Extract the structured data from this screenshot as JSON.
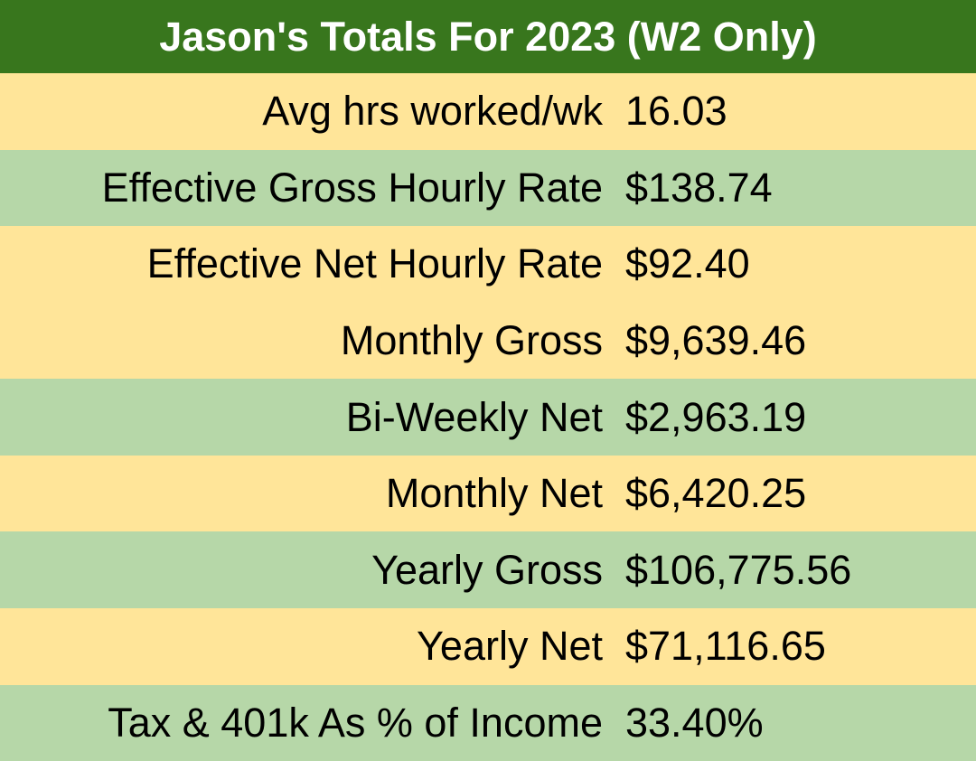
{
  "table": {
    "title": "Jason's Totals For 2023 (W2 Only)",
    "rows": [
      {
        "label": "Avg hrs worked/wk",
        "value": "16.03"
      },
      {
        "label": "Effective Gross Hourly Rate",
        "value": "$138.74"
      },
      {
        "label": "Effective Net Hourly Rate",
        "value": "$92.40"
      },
      {
        "label": "Monthly Gross",
        "value": "$9,639.46"
      },
      {
        "label": "Bi-Weekly Net",
        "value": "$2,963.19"
      },
      {
        "label": "Monthly Net",
        "value": "$6,420.25"
      },
      {
        "label": "Yearly Gross",
        "value": "$106,775.56"
      },
      {
        "label": "Yearly Net",
        "value": "$71,116.65"
      },
      {
        "label": "Tax & 401k As % of Income",
        "value": "33.40%"
      }
    ],
    "colors": {
      "header_bg": "#38761d",
      "header_text": "#ffffff",
      "row_band_cream": "#ffe599",
      "row_band_green": "#b6d7a8",
      "row_text": "#000000"
    }
  }
}
